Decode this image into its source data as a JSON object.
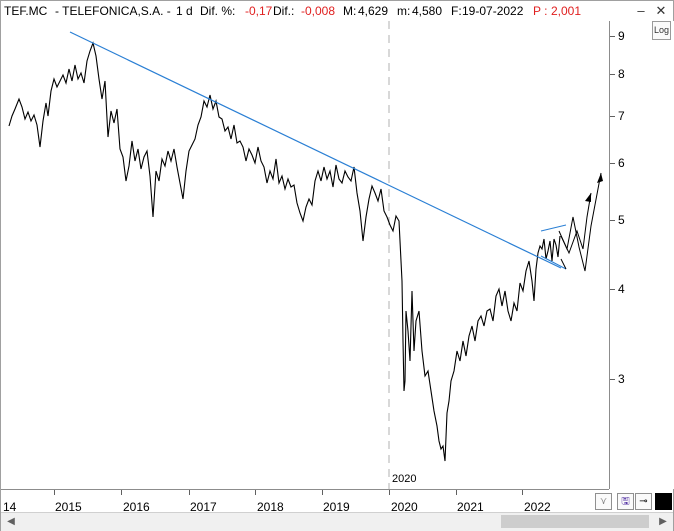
{
  "header": {
    "symbol": "TEF.MC",
    "name": "- TELEFONICA,S.A.  -",
    "period": "1 d",
    "dif_pct_label": "Dif. %:",
    "dif_pct_value": "-0,17",
    "dif_label": "Dif.:",
    "dif_value": "-0,008",
    "max_label": "M:",
    "max_value": "4,629",
    "min_label": "m:",
    "min_value": "4,580",
    "date_label": "F:",
    "date_value": "19-07-2022",
    "price_label": "P :",
    "price_value": "2,001"
  },
  "window_buttons": {
    "minimize": "–",
    "close": "✕"
  },
  "log_button": "Log",
  "y_axis": {
    "labels": [
      "9",
      "8",
      "7",
      "6",
      "5",
      "4",
      "3"
    ],
    "scale": "log"
  },
  "x_axis": {
    "labels": [
      "14",
      "2015",
      "2016",
      "2017",
      "2018",
      "2019",
      "2020",
      "2021",
      "2022"
    ]
  },
  "cursor_label": "2020",
  "toolbar": {
    "save_label": "🖫",
    "pin_label": "⊸"
  },
  "scrollbar": {
    "left": "◀",
    "right": "▶"
  },
  "colors": {
    "trendline": "#2a7fd4",
    "price": "#000000",
    "negative": "#e02020"
  }
}
